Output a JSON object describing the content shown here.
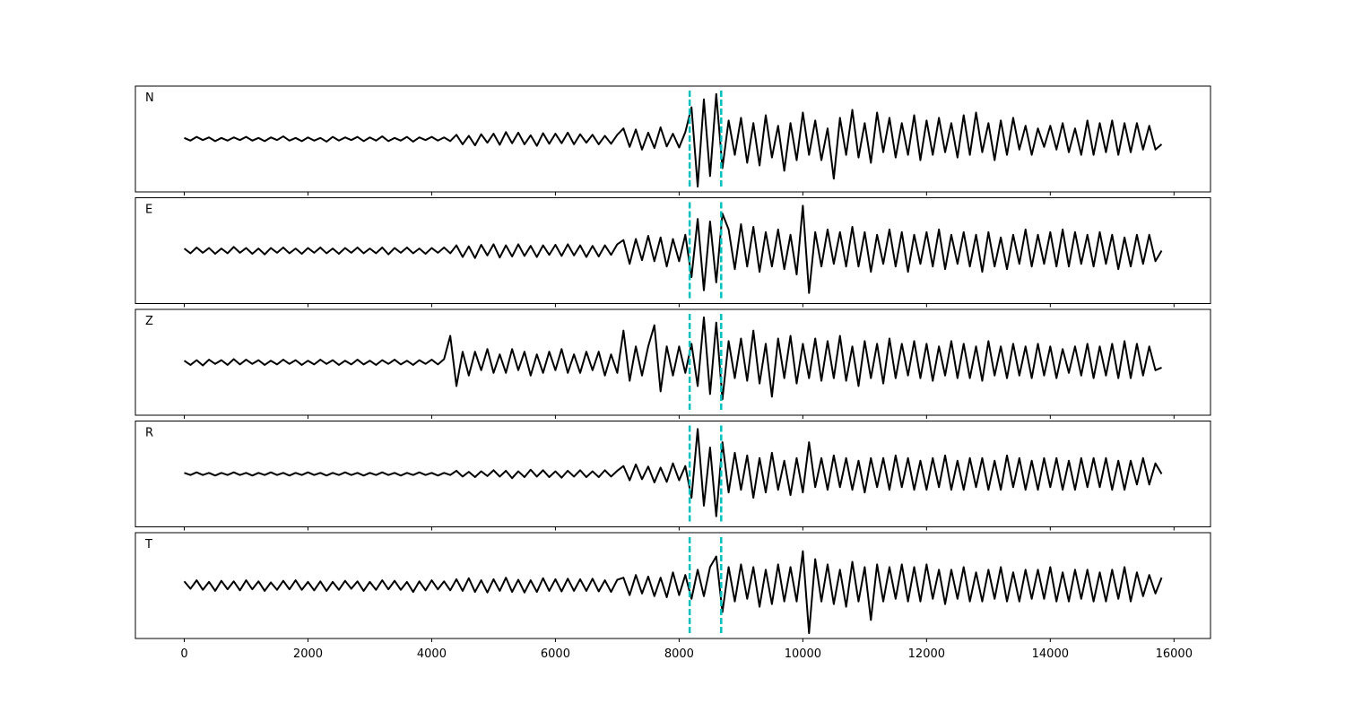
{
  "chart_data": {
    "type": "line",
    "layout": "stacked",
    "grid": false,
    "xlim": [
      -790,
      16590
    ],
    "xticks": [
      0,
      2000,
      4000,
      6000,
      8000,
      10000,
      12000,
      14000,
      16000
    ],
    "ylim": [
      -1,
      1
    ],
    "vlines": {
      "x": [
        8170,
        8680
      ],
      "color": "#00bfbf",
      "style": "dashed"
    },
    "x": [
      0,
      100,
      200,
      300,
      400,
      500,
      600,
      700,
      800,
      900,
      1000,
      1100,
      1200,
      1300,
      1400,
      1500,
      1600,
      1700,
      1800,
      1900,
      2000,
      2100,
      2200,
      2300,
      2400,
      2500,
      2600,
      2700,
      2800,
      2900,
      3000,
      3100,
      3200,
      3300,
      3400,
      3500,
      3600,
      3700,
      3800,
      3900,
      4000,
      4100,
      4200,
      4300,
      4400,
      4500,
      4600,
      4700,
      4800,
      4900,
      5000,
      5100,
      5200,
      5300,
      5400,
      5500,
      5600,
      5700,
      5800,
      5900,
      6000,
      6100,
      6200,
      6300,
      6400,
      6500,
      6600,
      6700,
      6800,
      6900,
      7000,
      7100,
      7200,
      7300,
      7400,
      7500,
      7600,
      7700,
      7800,
      7900,
      8000,
      8100,
      8200,
      8300,
      8400,
      8500,
      8600,
      8700,
      8800,
      8900,
      9000,
      9100,
      9200,
      9300,
      9400,
      9500,
      9600,
      9700,
      9800,
      9900,
      10000,
      10100,
      10200,
      10300,
      10400,
      10500,
      10600,
      10700,
      10800,
      10900,
      11000,
      11100,
      11200,
      11300,
      11400,
      11500,
      11600,
      11700,
      11800,
      11900,
      12000,
      12100,
      12200,
      12300,
      12400,
      12500,
      12600,
      12700,
      12800,
      12900,
      13000,
      13100,
      13200,
      13300,
      13400,
      13500,
      13600,
      13700,
      13800,
      13900,
      14000,
      14100,
      14200,
      14300,
      14400,
      14500,
      14600,
      14700,
      14800,
      14900,
      15000,
      15100,
      15200,
      15300,
      15400,
      15500,
      15600,
      15700,
      15800
    ],
    "series": [
      {
        "name": "N",
        "color": "#000000",
        "values": [
          0.02,
          -0.03,
          0.04,
          -0.02,
          0.03,
          -0.04,
          0.02,
          -0.03,
          0.03,
          -0.02,
          0.04,
          -0.03,
          0.02,
          -0.04,
          0.03,
          -0.02,
          0.05,
          -0.03,
          0.02,
          -0.04,
          0.03,
          -0.03,
          0.02,
          -0.05,
          0.04,
          -0.03,
          0.03,
          -0.02,
          0.04,
          -0.04,
          0.03,
          -0.03,
          0.05,
          -0.04,
          0.02,
          -0.03,
          0.04,
          -0.05,
          0.03,
          -0.02,
          0.04,
          -0.03,
          0.03,
          -0.04,
          0.08,
          -0.1,
          0.06,
          -0.12,
          0.09,
          -0.07,
          0.1,
          -0.11,
          0.13,
          -0.08,
          0.12,
          -0.1,
          0.07,
          -0.13,
          0.11,
          -0.09,
          0.1,
          -0.08,
          0.12,
          -0.1,
          0.09,
          -0.07,
          0.08,
          -0.1,
          0.06,
          -0.09,
          0.08,
          0.2,
          -0.15,
          0.18,
          -0.2,
          0.12,
          -0.17,
          0.22,
          -0.14,
          0.1,
          -0.16,
          0.13,
          0.6,
          -0.9,
          0.75,
          -0.7,
          0.85,
          -0.55,
          0.35,
          -0.3,
          0.4,
          -0.45,
          0.3,
          -0.5,
          0.45,
          -0.35,
          0.25,
          -0.6,
          0.3,
          -0.4,
          0.5,
          -0.3,
          0.35,
          -0.4,
          0.2,
          -0.75,
          0.4,
          -0.3,
          0.55,
          -0.35,
          0.3,
          -0.45,
          0.5,
          -0.25,
          0.4,
          -0.35,
          0.3,
          -0.3,
          0.45,
          -0.4,
          0.35,
          -0.3,
          0.4,
          -0.25,
          0.3,
          -0.35,
          0.45,
          -0.3,
          0.5,
          -0.25,
          0.3,
          -0.4,
          0.35,
          -0.3,
          0.4,
          -0.2,
          0.25,
          -0.3,
          0.2,
          -0.15,
          0.25,
          -0.2,
          0.3,
          -0.25,
          0.2,
          -0.3,
          0.35,
          -0.3,
          0.3,
          -0.25,
          0.35,
          -0.3,
          0.3,
          -0.25,
          0.3,
          -0.2,
          0.25,
          -0.2,
          -0.1
        ]
      },
      {
        "name": "E",
        "color": "#000000",
        "values": [
          0.04,
          -0.05,
          0.06,
          -0.04,
          0.05,
          -0.06,
          0.04,
          -0.05,
          0.07,
          -0.04,
          0.05,
          -0.06,
          0.04,
          -0.07,
          0.05,
          -0.04,
          0.06,
          -0.05,
          0.04,
          -0.06,
          0.05,
          -0.04,
          0.06,
          -0.05,
          0.04,
          -0.06,
          0.05,
          -0.04,
          0.06,
          -0.05,
          0.04,
          -0.05,
          0.06,
          -0.07,
          0.05,
          -0.04,
          0.06,
          -0.05,
          0.04,
          -0.06,
          0.05,
          -0.04,
          0.06,
          -0.05,
          0.1,
          -0.12,
          0.08,
          -0.14,
          0.11,
          -0.09,
          0.12,
          -0.13,
          0.1,
          -0.11,
          0.12,
          -0.1,
          0.09,
          -0.12,
          0.1,
          -0.08,
          0.11,
          -0.1,
          0.12,
          -0.09,
          0.1,
          -0.12,
          0.09,
          -0.11,
          0.1,
          -0.08,
          0.12,
          0.2,
          -0.25,
          0.22,
          -0.18,
          0.28,
          -0.2,
          0.25,
          -0.3,
          0.22,
          -0.2,
          0.3,
          -0.5,
          0.6,
          -0.75,
          0.55,
          -0.6,
          0.7,
          0.4,
          -0.35,
          0.5,
          -0.3,
          0.45,
          -0.4,
          0.35,
          -0.3,
          0.4,
          -0.35,
          0.3,
          -0.45,
          0.85,
          -0.8,
          0.35,
          -0.3,
          0.4,
          -0.25,
          0.35,
          -0.3,
          0.45,
          -0.3,
          0.35,
          -0.4,
          0.3,
          -0.25,
          0.4,
          -0.3,
          0.35,
          -0.4,
          0.3,
          -0.25,
          0.35,
          -0.3,
          0.4,
          -0.35,
          0.3,
          -0.25,
          0.35,
          -0.3,
          0.3,
          -0.4,
          0.35,
          -0.3,
          0.25,
          -0.35,
          0.3,
          -0.25,
          0.4,
          -0.3,
          0.3,
          -0.25,
          0.35,
          -0.3,
          0.4,
          -0.3,
          0.35,
          -0.25,
          0.3,
          -0.3,
          0.35,
          -0.25,
          0.3,
          -0.35,
          0.25,
          -0.3,
          0.3,
          -0.25,
          0.3,
          -0.2,
          0.0
        ]
      },
      {
        "name": "Z",
        "color": "#000000",
        "values": [
          0.03,
          -0.05,
          0.04,
          -0.06,
          0.05,
          -0.03,
          0.04,
          -0.05,
          0.06,
          -0.04,
          0.05,
          -0.03,
          0.04,
          -0.05,
          0.03,
          -0.04,
          0.05,
          -0.03,
          0.04,
          -0.05,
          0.03,
          -0.04,
          0.05,
          -0.03,
          0.04,
          -0.05,
          0.03,
          -0.04,
          0.05,
          -0.04,
          0.03,
          -0.05,
          0.04,
          -0.03,
          0.05,
          -0.04,
          0.03,
          -0.05,
          0.04,
          -0.03,
          0.05,
          -0.04,
          0.06,
          0.5,
          -0.45,
          0.2,
          -0.25,
          0.2,
          -0.15,
          0.25,
          -0.2,
          0.15,
          -0.2,
          0.25,
          -0.15,
          0.2,
          -0.25,
          0.15,
          -0.2,
          0.2,
          -0.15,
          0.25,
          -0.2,
          0.15,
          -0.2,
          0.2,
          -0.15,
          0.2,
          -0.25,
          0.15,
          -0.2,
          0.6,
          -0.35,
          0.3,
          -0.25,
          0.3,
          0.7,
          -0.55,
          0.3,
          -0.25,
          0.3,
          -0.2,
          0.35,
          -0.45,
          0.85,
          -0.6,
          0.75,
          -0.7,
          0.4,
          -0.3,
          0.45,
          -0.35,
          0.6,
          -0.4,
          0.35,
          -0.65,
          0.45,
          -0.3,
          0.5,
          -0.4,
          0.35,
          -0.3,
          0.45,
          -0.35,
          0.4,
          -0.3,
          0.5,
          -0.35,
          0.3,
          -0.45,
          0.4,
          -0.3,
          0.35,
          -0.4,
          0.45,
          -0.3,
          0.35,
          -0.25,
          0.4,
          -0.3,
          0.35,
          -0.35,
          0.3,
          -0.25,
          0.4,
          -0.3,
          0.35,
          -0.3,
          0.3,
          -0.35,
          0.4,
          -0.25,
          0.3,
          -0.3,
          0.35,
          -0.25,
          0.3,
          -0.3,
          0.35,
          -0.25,
          0.3,
          -0.3,
          0.25,
          -0.2,
          0.3,
          -0.25,
          0.35,
          -0.3,
          0.3,
          -0.25,
          0.35,
          -0.3,
          0.4,
          -0.3,
          0.35,
          -0.25,
          0.3,
          -0.15,
          -0.1
        ]
      },
      {
        "name": "R",
        "color": "#000000",
        "values": [
          0.02,
          -0.02,
          0.03,
          -0.02,
          0.02,
          -0.03,
          0.02,
          -0.02,
          0.03,
          -0.02,
          0.02,
          -0.03,
          0.02,
          -0.02,
          0.03,
          -0.02,
          0.02,
          -0.03,
          0.02,
          -0.02,
          0.03,
          -0.02,
          0.02,
          -0.03,
          0.02,
          -0.02,
          0.03,
          -0.02,
          0.02,
          -0.03,
          0.02,
          -0.02,
          0.03,
          -0.02,
          0.02,
          -0.03,
          0.02,
          -0.02,
          0.03,
          -0.02,
          0.02,
          -0.03,
          0.02,
          -0.02,
          0.06,
          -0.05,
          0.04,
          -0.06,
          0.05,
          -0.04,
          0.07,
          -0.05,
          0.06,
          -0.08,
          0.05,
          -0.06,
          0.08,
          -0.05,
          0.07,
          -0.06,
          0.05,
          -0.07,
          0.06,
          -0.05,
          0.07,
          -0.06,
          0.05,
          -0.06,
          0.07,
          -0.05,
          0.06,
          0.15,
          -0.12,
          0.18,
          -0.1,
          0.14,
          -0.16,
          0.12,
          -0.15,
          0.2,
          -0.12,
          0.15,
          -0.45,
          0.85,
          -0.6,
          0.5,
          -0.8,
          0.6,
          -0.35,
          0.4,
          -0.3,
          0.35,
          -0.45,
          0.3,
          -0.35,
          0.4,
          -0.3,
          0.25,
          -0.4,
          0.3,
          -0.35,
          0.6,
          -0.25,
          0.3,
          -0.3,
          0.35,
          -0.25,
          0.3,
          -0.3,
          0.25,
          -0.35,
          0.3,
          -0.25,
          0.3,
          -0.3,
          0.35,
          -0.25,
          0.3,
          -0.3,
          0.25,
          -0.3,
          0.3,
          -0.25,
          0.35,
          -0.3,
          0.25,
          -0.3,
          0.3,
          -0.25,
          0.3,
          -0.3,
          0.25,
          -0.3,
          0.35,
          -0.25,
          0.3,
          -0.3,
          0.25,
          -0.3,
          0.3,
          -0.25,
          0.3,
          -0.3,
          0.25,
          -0.3,
          0.3,
          -0.25,
          0.3,
          -0.25,
          0.3,
          -0.3,
          0.25,
          -0.3,
          0.25,
          -0.2,
          0.3,
          -0.2,
          0.2,
          0.0
        ]
      },
      {
        "name": "T",
        "color": "#000000",
        "values": [
          0.08,
          -0.06,
          0.1,
          -0.08,
          0.07,
          -0.1,
          0.09,
          -0.07,
          0.08,
          -0.09,
          0.1,
          -0.07,
          0.08,
          -0.1,
          0.06,
          -0.08,
          0.09,
          -0.07,
          0.1,
          -0.08,
          0.07,
          -0.09,
          0.08,
          -0.1,
          0.07,
          -0.08,
          0.09,
          -0.06,
          0.08,
          -0.1,
          0.07,
          -0.08,
          0.1,
          -0.07,
          0.09,
          -0.08,
          0.07,
          -0.12,
          0.08,
          -0.09,
          0.1,
          -0.07,
          0.08,
          -0.09,
          0.12,
          -0.1,
          0.14,
          -0.12,
          0.1,
          -0.13,
          0.12,
          -0.1,
          0.15,
          -0.12,
          0.11,
          -0.13,
          0.1,
          -0.12,
          0.14,
          -0.1,
          0.12,
          -0.11,
          0.13,
          -0.1,
          0.12,
          -0.1,
          0.13,
          -0.11,
          0.1,
          -0.12,
          0.11,
          0.15,
          -0.18,
          0.2,
          -0.15,
          0.17,
          -0.2,
          0.15,
          -0.22,
          0.25,
          -0.18,
          0.2,
          -0.25,
          0.3,
          -0.2,
          0.35,
          0.55,
          -0.5,
          0.35,
          -0.3,
          0.4,
          -0.25,
          0.35,
          -0.4,
          0.3,
          -0.35,
          0.4,
          -0.3,
          0.35,
          -0.3,
          0.65,
          -0.9,
          0.5,
          -0.3,
          0.4,
          -0.35,
          0.3,
          -0.4,
          0.45,
          -0.3,
          0.35,
          -0.65,
          0.4,
          -0.3,
          0.35,
          -0.25,
          0.4,
          -0.3,
          0.35,
          -0.3,
          0.4,
          -0.25,
          0.3,
          -0.35,
          0.3,
          -0.25,
          0.35,
          -0.3,
          0.25,
          -0.3,
          0.3,
          -0.25,
          0.35,
          -0.3,
          0.25,
          -0.3,
          0.3,
          -0.25,
          0.3,
          -0.25,
          0.35,
          -0.3,
          0.25,
          -0.3,
          0.3,
          -0.25,
          0.3,
          -0.3,
          0.25,
          -0.3,
          0.3,
          -0.25,
          0.35,
          -0.3,
          0.25,
          -0.2,
          0.2,
          -0.15,
          0.15
        ]
      }
    ]
  }
}
